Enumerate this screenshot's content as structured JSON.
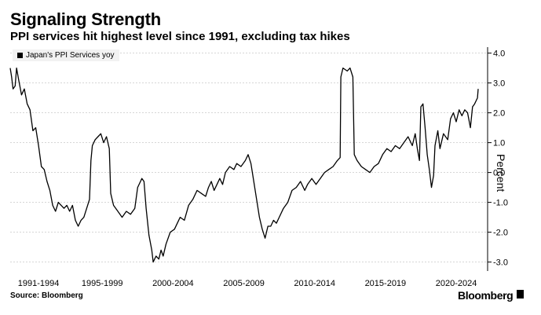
{
  "title": "Signaling Strength",
  "subtitle": "PPI services hit highest level since 1991, excluding tax hikes",
  "source": "Source: Bloomberg",
  "brand": "Bloomberg",
  "chart_data": {
    "type": "line",
    "ylabel": "Percent",
    "ylim": [
      -3.3,
      4.2
    ],
    "y_ticks": [
      4,
      3,
      2,
      1,
      0,
      -1,
      -2,
      -3
    ],
    "y_tick_labels": [
      "4.0",
      "3.0",
      "2.0",
      "1.0",
      "0.0",
      "-1.0",
      "-2.0",
      "-3.0"
    ],
    "x_range": [
      1991.0,
      2024.05
    ],
    "x_tick_labels": [
      {
        "label": "1991-1994",
        "x": 1993.0
      },
      {
        "label": "1995-1999",
        "x": 1997.5
      },
      {
        "label": "2000-2004",
        "x": 2002.5
      },
      {
        "label": "2005-2009",
        "x": 2007.5
      },
      {
        "label": "2010-2014",
        "x": 2012.5
      },
      {
        "label": "2015-2019",
        "x": 2017.5
      },
      {
        "label": "2020-2024",
        "x": 2022.5
      }
    ],
    "grid": "horizontal-dashed",
    "legend_position": "top-left",
    "series": [
      {
        "name": "Japan's PPI Services yoy",
        "color": "#000000",
        "points": [
          [
            1991.0,
            3.5
          ],
          [
            1991.1,
            3.2
          ],
          [
            1991.2,
            2.8
          ],
          [
            1991.35,
            2.9
          ],
          [
            1991.45,
            3.5
          ],
          [
            1991.6,
            3.1
          ],
          [
            1991.8,
            2.6
          ],
          [
            1992.0,
            2.8
          ],
          [
            1992.2,
            2.3
          ],
          [
            1992.4,
            2.1
          ],
          [
            1992.6,
            1.4
          ],
          [
            1992.8,
            1.5
          ],
          [
            1993.0,
            0.9
          ],
          [
            1993.2,
            0.2
          ],
          [
            1993.4,
            0.1
          ],
          [
            1993.6,
            -0.3
          ],
          [
            1993.8,
            -0.6
          ],
          [
            1994.0,
            -1.1
          ],
          [
            1994.2,
            -1.3
          ],
          [
            1994.4,
            -1.0
          ],
          [
            1994.6,
            -1.1
          ],
          [
            1994.8,
            -1.2
          ],
          [
            1995.0,
            -1.1
          ],
          [
            1995.2,
            -1.3
          ],
          [
            1995.4,
            -1.1
          ],
          [
            1995.6,
            -1.6
          ],
          [
            1995.8,
            -1.8
          ],
          [
            1996.0,
            -1.6
          ],
          [
            1996.2,
            -1.5
          ],
          [
            1996.4,
            -1.2
          ],
          [
            1996.6,
            -0.9
          ],
          [
            1996.7,
            0.4
          ],
          [
            1996.8,
            0.9
          ],
          [
            1997.0,
            1.1
          ],
          [
            1997.2,
            1.2
          ],
          [
            1997.4,
            1.3
          ],
          [
            1997.6,
            1.0
          ],
          [
            1997.8,
            1.2
          ],
          [
            1998.0,
            0.8
          ],
          [
            1998.1,
            -0.7
          ],
          [
            1998.3,
            -1.1
          ],
          [
            1998.6,
            -1.3
          ],
          [
            1998.9,
            -1.5
          ],
          [
            1999.2,
            -1.3
          ],
          [
            1999.5,
            -1.4
          ],
          [
            1999.8,
            -1.2
          ],
          [
            2000.0,
            -0.5
          ],
          [
            2000.2,
            -0.3
          ],
          [
            2000.3,
            -0.2
          ],
          [
            2000.45,
            -0.3
          ],
          [
            2000.6,
            -1.2
          ],
          [
            2000.8,
            -2.1
          ],
          [
            2001.0,
            -2.6
          ],
          [
            2001.1,
            -3.0
          ],
          [
            2001.3,
            -2.8
          ],
          [
            2001.5,
            -2.9
          ],
          [
            2001.65,
            -2.6
          ],
          [
            2001.8,
            -2.8
          ],
          [
            2002.0,
            -2.4
          ],
          [
            2002.3,
            -2.0
          ],
          [
            2002.6,
            -1.9
          ],
          [
            2002.8,
            -1.7
          ],
          [
            2003.0,
            -1.5
          ],
          [
            2003.3,
            -1.6
          ],
          [
            2003.6,
            -1.1
          ],
          [
            2003.9,
            -0.9
          ],
          [
            2004.2,
            -0.6
          ],
          [
            2004.5,
            -0.7
          ],
          [
            2004.8,
            -0.8
          ],
          [
            2005.0,
            -0.5
          ],
          [
            2005.2,
            -0.3
          ],
          [
            2005.4,
            -0.6
          ],
          [
            2005.6,
            -0.4
          ],
          [
            2005.8,
            -0.2
          ],
          [
            2006.0,
            -0.4
          ],
          [
            2006.2,
            0.0
          ],
          [
            2006.5,
            0.2
          ],
          [
            2006.8,
            0.1
          ],
          [
            2007.0,
            0.3
          ],
          [
            2007.3,
            0.2
          ],
          [
            2007.6,
            0.4
          ],
          [
            2007.8,
            0.6
          ],
          [
            2008.0,
            0.3
          ],
          [
            2008.2,
            -0.3
          ],
          [
            2008.4,
            -0.9
          ],
          [
            2008.6,
            -1.5
          ],
          [
            2008.8,
            -1.9
          ],
          [
            2009.0,
            -2.2
          ],
          [
            2009.2,
            -1.8
          ],
          [
            2009.4,
            -1.8
          ],
          [
            2009.6,
            -1.6
          ],
          [
            2009.8,
            -1.7
          ],
          [
            2010.0,
            -1.5
          ],
          [
            2010.3,
            -1.2
          ],
          [
            2010.6,
            -1.0
          ],
          [
            2010.9,
            -0.6
          ],
          [
            2011.2,
            -0.5
          ],
          [
            2011.5,
            -0.3
          ],
          [
            2011.8,
            -0.6
          ],
          [
            2012.0,
            -0.4
          ],
          [
            2012.3,
            -0.2
          ],
          [
            2012.6,
            -0.4
          ],
          [
            2012.9,
            -0.2
          ],
          [
            2013.2,
            0.0
          ],
          [
            2013.5,
            0.1
          ],
          [
            2013.8,
            0.2
          ],
          [
            2014.1,
            0.4
          ],
          [
            2014.3,
            0.5
          ],
          [
            2014.35,
            3.2
          ],
          [
            2014.5,
            3.5
          ],
          [
            2014.8,
            3.4
          ],
          [
            2015.0,
            3.5
          ],
          [
            2015.2,
            3.2
          ],
          [
            2015.3,
            0.6
          ],
          [
            2015.5,
            0.4
          ],
          [
            2015.8,
            0.2
          ],
          [
            2016.1,
            0.1
          ],
          [
            2016.4,
            0.0
          ],
          [
            2016.7,
            0.2
          ],
          [
            2017.0,
            0.3
          ],
          [
            2017.3,
            0.6
          ],
          [
            2017.6,
            0.8
          ],
          [
            2017.9,
            0.7
          ],
          [
            2018.2,
            0.9
          ],
          [
            2018.5,
            0.8
          ],
          [
            2018.8,
            1.0
          ],
          [
            2019.1,
            1.2
          ],
          [
            2019.4,
            0.9
          ],
          [
            2019.6,
            1.3
          ],
          [
            2019.75,
            0.8
          ],
          [
            2019.9,
            0.4
          ],
          [
            2020.0,
            2.2
          ],
          [
            2020.15,
            2.3
          ],
          [
            2020.3,
            1.5
          ],
          [
            2020.45,
            0.6
          ],
          [
            2020.6,
            0.1
          ],
          [
            2020.75,
            -0.5
          ],
          [
            2020.9,
            -0.1
          ],
          [
            2021.0,
            0.9
          ],
          [
            2021.2,
            1.4
          ],
          [
            2021.35,
            0.8
          ],
          [
            2021.6,
            1.3
          ],
          [
            2021.9,
            1.1
          ],
          [
            2022.1,
            1.8
          ],
          [
            2022.3,
            2.0
          ],
          [
            2022.5,
            1.7
          ],
          [
            2022.7,
            2.1
          ],
          [
            2022.9,
            1.9
          ],
          [
            2023.1,
            2.1
          ],
          [
            2023.3,
            2.0
          ],
          [
            2023.5,
            1.5
          ],
          [
            2023.65,
            2.2
          ],
          [
            2023.8,
            2.3
          ],
          [
            2023.9,
            2.4
          ],
          [
            2024.0,
            2.5
          ],
          [
            2024.05,
            2.8
          ]
        ]
      }
    ]
  }
}
